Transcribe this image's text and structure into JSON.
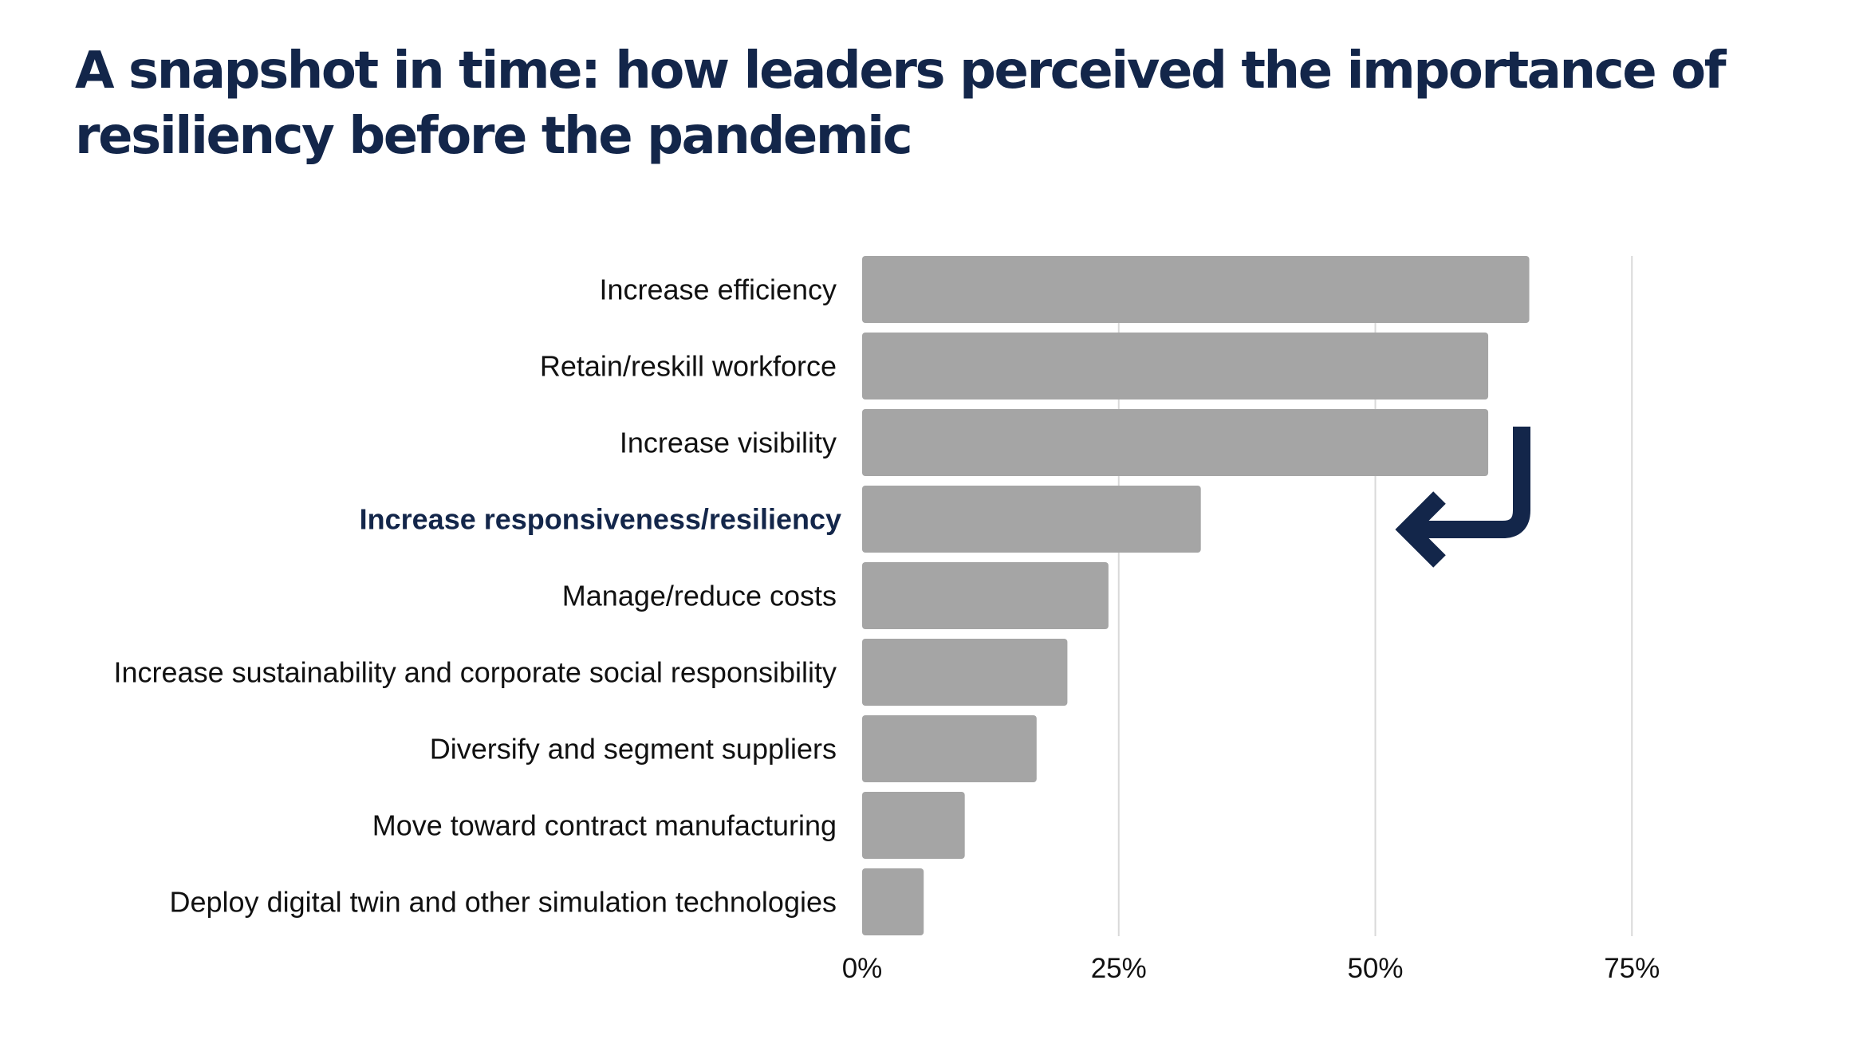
{
  "title_lines": [
    "A snapshot in time: how leaders perceived the importance of",
    "resiliency before the pandemic"
  ],
  "colors": {
    "title": "#13264a",
    "bar": "#a5a5a5",
    "grid": "#d9d9d9",
    "highlight_label": "#13264a",
    "arrow": "#13264a"
  },
  "annotation_icon": "return-arrow-icon",
  "chart_data": {
    "type": "bar",
    "orientation": "horizontal",
    "title": "A snapshot in time: how leaders perceived the importance of resiliency before the pandemic",
    "categories": [
      "Increase efficiency",
      "Retain/reskill workforce",
      "Increase visibility",
      "Increase responsiveness/resiliency",
      "Manage/reduce costs",
      "Increase sustainability and corporate social responsibility",
      "Diversify and segment suppliers",
      "Move toward contract manufacturing",
      "Deploy digital twin and other simulation technologies"
    ],
    "values": [
      65,
      61,
      61,
      33,
      24,
      20,
      17,
      10,
      6
    ],
    "highlighted_category": "Increase responsiveness/resiliency",
    "xlim": [
      0,
      75
    ],
    "xticks": [
      0,
      25,
      50,
      75
    ],
    "xtick_labels": [
      "0%",
      "25%",
      "50%",
      "75%"
    ],
    "unit": "%",
    "grid": "vertical",
    "legend": "none"
  }
}
